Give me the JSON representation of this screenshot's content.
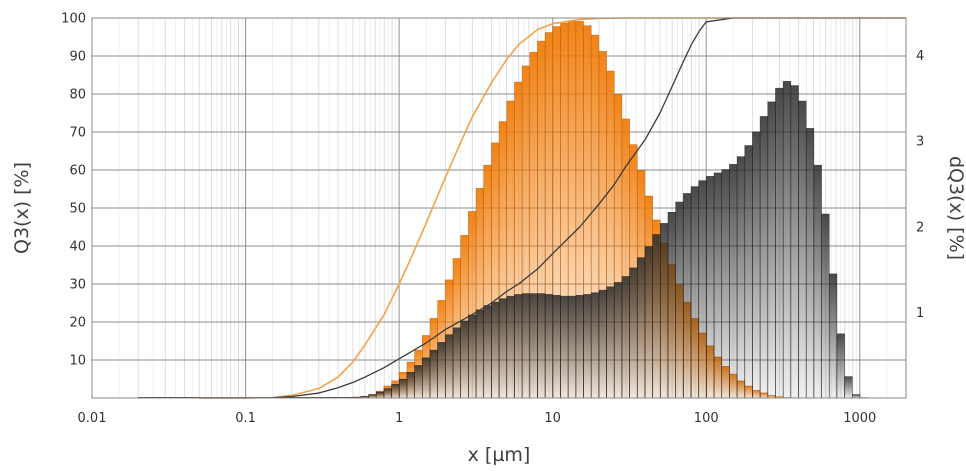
{
  "chart_data": {
    "type": "bar",
    "title": "",
    "xlabel": "x [µm]",
    "ylabel": "Q3(x) [%]",
    "y2label": "dQ3(x) [%]",
    "xscale": "log",
    "xlim": [
      0.01,
      2000
    ],
    "ylim": [
      0,
      100
    ],
    "y2lim": [
      0,
      4.44
    ],
    "grid": true,
    "legend": "none",
    "xticks": [
      {
        "value": 0.01,
        "label": "0.01"
      },
      {
        "value": 0.1,
        "label": "0.1"
      },
      {
        "value": 1,
        "label": "1"
      },
      {
        "value": 10,
        "label": "10"
      },
      {
        "value": 100,
        "label": "100"
      },
      {
        "value": 1000,
        "label": "1000"
      }
    ],
    "yticks": [
      {
        "value": 10,
        "label": "10"
      },
      {
        "value": 20,
        "label": "20"
      },
      {
        "value": 30,
        "label": "30"
      },
      {
        "value": 40,
        "label": "40"
      },
      {
        "value": 50,
        "label": "50"
      },
      {
        "value": 60,
        "label": "60"
      },
      {
        "value": 70,
        "label": "70"
      },
      {
        "value": 80,
        "label": "80"
      },
      {
        "value": 90,
        "label": "90"
      },
      {
        "value": 100,
        "label": "100"
      }
    ],
    "y2ticks": [
      {
        "value": 1,
        "label": "1"
      },
      {
        "value": 2,
        "label": "2"
      },
      {
        "value": 3,
        "label": "3"
      },
      {
        "value": 4,
        "label": "4"
      }
    ],
    "series": [
      {
        "name": "",
        "kind": "histogram",
        "color": "#f07d0a",
        "bins_per_decade": 20,
        "x_start": 0.02,
        "density": [
          0.008,
          0.008,
          0.008,
          0.008,
          0.008,
          0.008,
          0.008,
          0.008,
          0.008,
          0.008,
          0.008,
          0.008,
          0.008,
          0.008,
          0.008,
          0.008,
          0.008,
          0.008,
          0.008,
          0.008,
          0.008,
          0.008,
          0.008,
          0.008,
          0.008,
          0.008,
          0.008,
          0.008,
          0.01,
          0.02,
          0.04,
          0.08,
          0.14,
          0.2,
          0.3,
          0.42,
          0.56,
          0.73,
          0.93,
          1.14,
          1.38,
          1.63,
          1.9,
          2.18,
          2.45,
          2.72,
          2.98,
          3.23,
          3.47,
          3.69,
          3.88,
          4.04,
          4.17,
          4.27,
          4.34,
          4.38,
          4.4,
          4.4,
          4.35,
          4.24,
          4.05,
          3.82,
          3.55,
          3.26,
          2.96,
          2.66,
          2.36,
          2.08,
          1.81,
          1.56,
          1.33,
          1.12,
          0.93,
          0.76,
          0.61,
          0.48,
          0.37,
          0.28,
          0.2,
          0.14,
          0.09,
          0.06,
          0.03,
          0.015,
          0.005
        ]
      },
      {
        "name": "",
        "kind": "histogram",
        "color": "#2a2a2a",
        "bins_per_decade": 20,
        "x_start": 0.02,
        "density": [
          0.008,
          0.008,
          0.008,
          0.008,
          0.008,
          0.008,
          0.008,
          0.008,
          0.008,
          0.008,
          0.008,
          0.008,
          0.008,
          0.008,
          0.008,
          0.008,
          0.008,
          0.008,
          0.008,
          0.008,
          0.008,
          0.008,
          0.008,
          0.008,
          0.008,
          0.008,
          0.008,
          0.008,
          0.01,
          0.02,
          0.04,
          0.07,
          0.11,
          0.16,
          0.22,
          0.3,
          0.38,
          0.47,
          0.56,
          0.65,
          0.74,
          0.82,
          0.9,
          0.97,
          1.03,
          1.08,
          1.12,
          1.16,
          1.19,
          1.21,
          1.22,
          1.22,
          1.22,
          1.21,
          1.2,
          1.19,
          1.19,
          1.2,
          1.21,
          1.23,
          1.26,
          1.3,
          1.35,
          1.42,
          1.52,
          1.64,
          1.77,
          1.91,
          2.04,
          2.17,
          2.29,
          2.39,
          2.47,
          2.54,
          2.59,
          2.63,
          2.67,
          2.73,
          2.82,
          2.95,
          3.11,
          3.29,
          3.46,
          3.62,
          3.7,
          3.65,
          3.47,
          3.15,
          2.72,
          2.15,
          1.45,
          0.75,
          0.25,
          0.04,
          0.005
        ]
      },
      {
        "name": "",
        "kind": "cumulative",
        "color": "#f5a24b",
        "x": [
          0.05,
          0.1,
          0.15,
          0.2,
          0.3,
          0.4,
          0.5,
          0.6,
          0.8,
          1,
          1.2,
          1.5,
          2,
          2.5,
          3,
          4,
          5,
          6,
          8,
          10,
          15,
          20,
          30,
          50,
          100,
          2000
        ],
        "y": [
          0,
          0,
          0.1,
          0.7,
          2.5,
          5.5,
          9.5,
          14,
          22,
          30,
          37,
          46,
          58,
          67,
          74,
          83,
          89,
          93,
          97,
          98.5,
          99.6,
          99.9,
          100,
          100,
          100,
          100
        ]
      },
      {
        "name": "",
        "kind": "cumulative",
        "color": "#3a3a3a",
        "x": [
          0.05,
          0.1,
          0.15,
          0.2,
          0.3,
          0.4,
          0.5,
          0.6,
          0.8,
          1,
          1.5,
          2,
          3,
          4,
          5,
          6,
          8,
          10,
          15,
          20,
          25,
          30,
          40,
          50,
          60,
          70,
          80,
          90,
          100,
          150,
          2000
        ],
        "y": [
          0,
          0,
          0.1,
          0.4,
          1.3,
          2.7,
          4.1,
          5.5,
          8,
          10.3,
          14.5,
          18,
          22,
          25,
          28,
          30,
          34,
          38,
          45,
          51,
          56,
          61,
          68,
          75,
          82,
          88,
          93,
          96.5,
          99,
          100,
          100
        ]
      }
    ]
  }
}
